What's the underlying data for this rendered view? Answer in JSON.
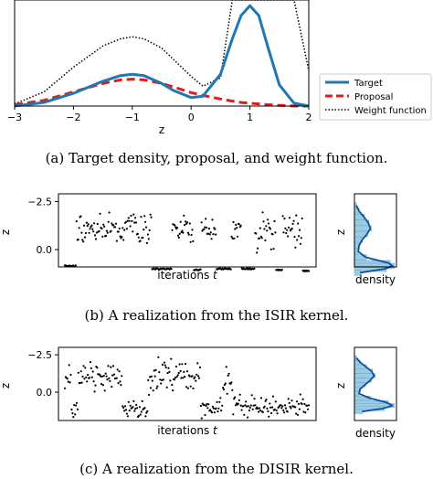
{
  "chart_data": [
    {
      "panel": "a",
      "type": "line",
      "caption": "(a)  Target density, proposal, and weight function.",
      "xlabel": "z",
      "xlim": [
        -3,
        2
      ],
      "ylim": [
        0,
        1.5
      ],
      "xticks": [
        "−3",
        "−2",
        "−1",
        "0",
        "1",
        "2"
      ],
      "xtick_values": [
        -3,
        -2,
        -1,
        0,
        1,
        2
      ],
      "legend_position": "right",
      "x": [
        -3.0,
        -2.5,
        -2.0,
        -1.5,
        -1.2,
        -1.0,
        -0.8,
        -0.5,
        -0.3,
        0.0,
        0.2,
        0.5,
        0.7,
        0.85,
        1.0,
        1.15,
        1.3,
        1.5,
        1.75,
        2.0
      ],
      "series": [
        {
          "name": "Target",
          "color": "#1f77b4",
          "style": "solid",
          "values": [
            0.0,
            0.05,
            0.18,
            0.35,
            0.43,
            0.45,
            0.43,
            0.32,
            0.22,
            0.12,
            0.14,
            0.45,
            0.95,
            1.28,
            1.42,
            1.28,
            0.85,
            0.3,
            0.04,
            0.0
          ]
        },
        {
          "name": "Proposal",
          "color": "#e31a1c",
          "style": "dashed",
          "values": [
            0.02,
            0.08,
            0.2,
            0.32,
            0.37,
            0.38,
            0.37,
            0.32,
            0.27,
            0.19,
            0.15,
            0.1,
            0.07,
            0.05,
            0.04,
            0.03,
            0.02,
            0.01,
            0.0,
            0.0
          ]
        },
        {
          "name": "Weight function",
          "color": "#000000",
          "style": "dotted",
          "values": [
            0.03,
            0.2,
            0.55,
            0.85,
            0.95,
            0.98,
            0.95,
            0.82,
            0.66,
            0.42,
            0.28,
            0.4,
            1.5,
            1.5,
            1.5,
            1.5,
            1.5,
            1.5,
            1.5,
            0.5
          ]
        }
      ]
    },
    {
      "panel": "b",
      "type": "scatter",
      "caption": "(b)  A realization from the ISIR kernel.",
      "xlabel_text": "iterations ",
      "xlabel_var": "t",
      "ylabel": "z",
      "ylim": [
        0.9,
        -2.9
      ],
      "yticks": [
        "−2.5",
        "0.0"
      ],
      "ytick_values": [
        -2.5,
        0.0
      ],
      "side_xlabel": "density",
      "side_ylabel": "z",
      "regimes": [
        {
          "type": "flat",
          "len": 14,
          "z": 0.85
        },
        {
          "type": "cloud",
          "len": 90,
          "z": -1.1,
          "spread": 0.45
        },
        {
          "type": "flat",
          "len": 24,
          "z": 1.0
        },
        {
          "type": "cloud",
          "len": 26,
          "z": -1.0,
          "spread": 0.45
        },
        {
          "type": "flat",
          "len": 9,
          "z": 1.05
        },
        {
          "type": "cloud",
          "len": 18,
          "z": -0.9,
          "spread": 0.3
        },
        {
          "type": "flat",
          "len": 18,
          "z": 1.0
        },
        {
          "type": "cloud",
          "len": 12,
          "z": -0.9,
          "spread": 0.4
        },
        {
          "type": "flat",
          "len": 16,
          "z": 1.0
        },
        {
          "type": "cloud",
          "len": 25,
          "z": -1.0,
          "spread": 0.4
        },
        {
          "type": "flat",
          "len": 8,
          "z": 1.05
        },
        {
          "type": "cloud",
          "len": 24,
          "z": -1.0,
          "spread": 0.4
        },
        {
          "type": "flat",
          "len": 8,
          "z": 1.1
        }
      ],
      "density_hist": [
        {
          "z": -2.3,
          "d": 0.05
        },
        {
          "z": -2.0,
          "d": 0.12
        },
        {
          "z": -1.7,
          "d": 0.25
        },
        {
          "z": -1.4,
          "d": 0.36
        },
        {
          "z": -1.1,
          "d": 0.42
        },
        {
          "z": -0.8,
          "d": 0.33
        },
        {
          "z": -0.5,
          "d": 0.2
        },
        {
          "z": -0.2,
          "d": 0.12
        },
        {
          "z": 0.1,
          "d": 0.1
        },
        {
          "z": 0.4,
          "d": 0.3
        },
        {
          "z": 0.7,
          "d": 0.9
        },
        {
          "z": 0.85,
          "d": 1.0
        },
        {
          "z": 1.0,
          "d": 0.8
        },
        {
          "z": 1.2,
          "d": 0.15
        }
      ]
    },
    {
      "panel": "c",
      "type": "scatter",
      "caption": "(c)  A realization from the DISIR kernel.",
      "xlabel_text": "iterations ",
      "xlabel_var": "t",
      "ylabel": "z",
      "ylim": [
        1.9,
        -3.0
      ],
      "yticks": [
        "−2.5",
        "0.0"
      ],
      "ytick_values": [
        -2.5,
        0.0
      ],
      "side_xlabel": "density",
      "side_ylabel": "z",
      "regimes": [
        {
          "type": "cloud",
          "len": 8,
          "z": -0.8,
          "spread": 0.9
        },
        {
          "type": "cloud",
          "len": 8,
          "z": 1.2,
          "spread": 0.35
        },
        {
          "type": "cloud",
          "len": 52,
          "z": -1.0,
          "spread": 0.5
        },
        {
          "type": "cloud",
          "len": 30,
          "z": 1.0,
          "spread": 0.3
        },
        {
          "type": "cloud",
          "len": 62,
          "z": -1.1,
          "spread": 0.55
        },
        {
          "type": "cloud",
          "len": 26,
          "z": 1.0,
          "spread": 0.3
        },
        {
          "type": "cloud",
          "len": 12,
          "z": -0.9,
          "spread": 0.6
        },
        {
          "type": "cloud",
          "len": 90,
          "z": 1.0,
          "spread": 0.35
        }
      ],
      "density_hist": [
        {
          "z": -2.3,
          "d": 0.05
        },
        {
          "z": -2.0,
          "d": 0.15
        },
        {
          "z": -1.7,
          "d": 0.3
        },
        {
          "z": -1.4,
          "d": 0.45
        },
        {
          "z": -1.1,
          "d": 0.52
        },
        {
          "z": -0.8,
          "d": 0.42
        },
        {
          "z": -0.5,
          "d": 0.28
        },
        {
          "z": -0.2,
          "d": 0.15
        },
        {
          "z": 0.1,
          "d": 0.12
        },
        {
          "z": 0.4,
          "d": 0.4
        },
        {
          "z": 0.7,
          "d": 0.85
        },
        {
          "z": 0.9,
          "d": 1.0
        },
        {
          "z": 1.1,
          "d": 0.75
        },
        {
          "z": 1.3,
          "d": 0.2
        }
      ]
    }
  ]
}
